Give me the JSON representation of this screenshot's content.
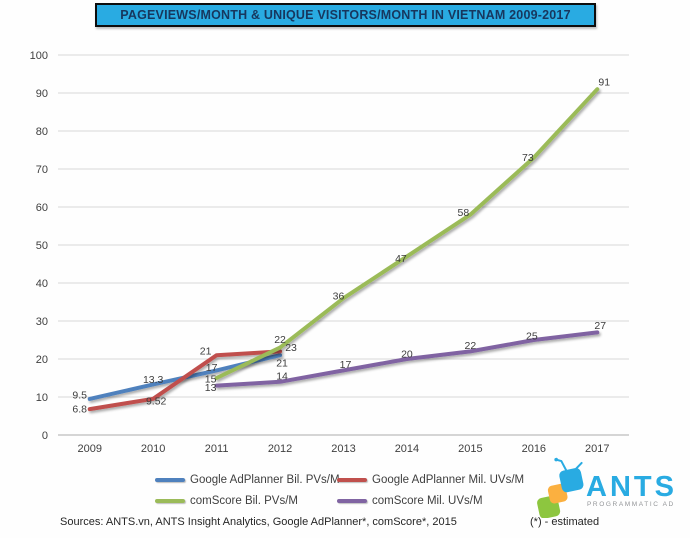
{
  "title": {
    "text": "PAGEVIEWS/MONTH & UNIQUE VISITORS/MONTH IN VIETNAM 2009-2017",
    "bg_color": "#29ABE2",
    "text_color": "#17375E",
    "border_color": "#000000"
  },
  "chart_data": {
    "type": "line",
    "categories": [
      "2009",
      "2010",
      "2011",
      "2012",
      "2013",
      "2014",
      "2015",
      "2016",
      "2017"
    ],
    "y_ticks": [
      0,
      10,
      20,
      30,
      40,
      50,
      60,
      70,
      80,
      90,
      100
    ],
    "ylim": [
      0,
      100
    ],
    "grid": true,
    "legend_position": "bottom",
    "series": [
      {
        "name": "Google AdPlanner Bil. PVs/M",
        "color": "#4F81BD",
        "values": [
          9.5,
          13.3,
          17,
          21,
          null,
          null,
          null,
          null,
          null
        ],
        "label_offsets": [
          [
            -10,
            -4
          ],
          [
            0,
            -5
          ],
          [
            -5,
            -3
          ],
          [
            2,
            8
          ],
          null,
          null,
          null,
          null,
          null
        ]
      },
      {
        "name": "Google AdPlanner Mil. UVs/M",
        "color": "#C0504D",
        "values": [
          6.8,
          9.52,
          21,
          22,
          null,
          null,
          null,
          null,
          null
        ],
        "label_offsets": [
          [
            -10,
            0
          ],
          [
            3,
            2
          ],
          [
            -11,
            -4
          ],
          [
            0,
            -12
          ],
          null,
          null,
          null,
          null,
          null
        ]
      },
      {
        "name": "comScore Bil. PVs/M",
        "color": "#9BBB59",
        "values": [
          null,
          null,
          15,
          23,
          36,
          47,
          58,
          73,
          91
        ],
        "label_offsets": [
          null,
          null,
          [
            -6,
            1
          ],
          [
            11,
            0
          ],
          [
            -5,
            -2
          ],
          [
            -6,
            2
          ],
          [
            -7,
            -2
          ],
          [
            -6,
            0
          ],
          [
            7,
            -7
          ]
        ]
      },
      {
        "name": "comScore Mil. UVs/M",
        "color": "#8064A2",
        "values": [
          null,
          null,
          13,
          14,
          17,
          20,
          22,
          25,
          27
        ],
        "label_offsets": [
          null,
          null,
          [
            -6,
            2
          ],
          [
            2,
            -6
          ],
          [
            2,
            -6
          ],
          [
            0,
            -5
          ],
          [
            0,
            -6
          ],
          [
            -2,
            -4
          ],
          [
            3,
            -7
          ]
        ]
      }
    ]
  },
  "footer": {
    "sources": "Sources: ANTS.vn, ANTS Insight Analytics, Google AdPlanner*, comScore*, 2015",
    "estimated_note": "(*) - estimated"
  },
  "logo": {
    "name": "ANTS",
    "subtitle": "PROGRAMMATIC AD",
    "colors": {
      "blue": "#29ABE2",
      "yellow": "#FBB040",
      "green": "#8DC63F"
    }
  },
  "style": {
    "grid_color": "#d8d8d8",
    "axis_color": "#bdbdbd",
    "tick_text_color": "#404040",
    "data_label_color": "#3d3d3d"
  }
}
